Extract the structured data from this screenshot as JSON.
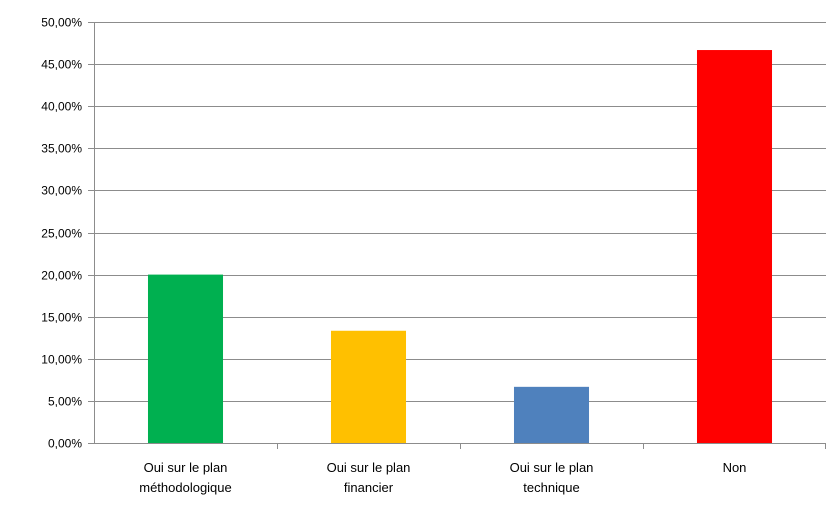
{
  "chart_data": {
    "type": "bar",
    "title": "",
    "xlabel": "",
    "ylabel": "",
    "categories": [
      [
        "Oui sur le plan",
        "méthodologique"
      ],
      [
        "Oui sur le plan",
        "financier"
      ],
      [
        "Oui sur le plan",
        "technique"
      ],
      [
        "Non"
      ]
    ],
    "values": [
      20.0,
      13.33,
      6.67,
      46.67
    ],
    "colors": [
      "#00b050",
      "#ffc000",
      "#4f81bd",
      "#ff0000"
    ],
    "ylim": [
      0,
      50
    ],
    "ytick_step": 5,
    "ytick_labels": [
      "0,00%",
      "5,00%",
      "10,00%",
      "15,00%",
      "20,00%",
      "25,00%",
      "30,00%",
      "35,00%",
      "40,00%",
      "45,00%",
      "50,00%"
    ],
    "grid": true,
    "legend": "none"
  }
}
